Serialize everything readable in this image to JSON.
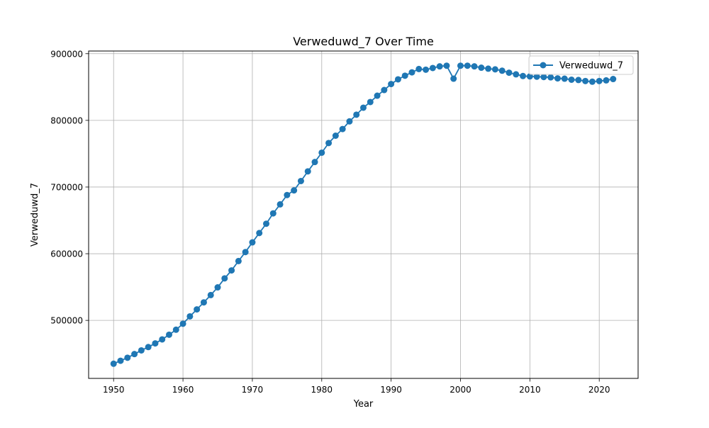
{
  "chart_data": {
    "type": "line",
    "title": "Verweduwd_7 Over Time",
    "xlabel": "Year",
    "ylabel": "Verweduwd_7",
    "xlim": [
      1946.4,
      2025.6
    ],
    "ylim": [
      413000,
      904000
    ],
    "x_ticks": [
      1950,
      1960,
      1970,
      1980,
      1990,
      2000,
      2010,
      2020
    ],
    "x_tick_labels": [
      "1950",
      "1960",
      "1970",
      "1980",
      "1990",
      "2000",
      "2010",
      "2020"
    ],
    "y_ticks": [
      500000,
      600000,
      700000,
      800000,
      900000
    ],
    "y_tick_labels": [
      "500000",
      "600000",
      "700000",
      "800000",
      "900000"
    ],
    "grid": true,
    "legend_position": "top-right",
    "series": [
      {
        "name": "Verweduwd_7",
        "color": "#1f77b4",
        "marker": "circle",
        "x": [
          1950,
          1951,
          1952,
          1953,
          1954,
          1955,
          1956,
          1957,
          1958,
          1959,
          1960,
          1961,
          1962,
          1963,
          1964,
          1965,
          1966,
          1967,
          1968,
          1969,
          1970,
          1971,
          1972,
          1973,
          1974,
          1975,
          1976,
          1977,
          1978,
          1979,
          1980,
          1981,
          1982,
          1983,
          1984,
          1985,
          1986,
          1987,
          1988,
          1989,
          1990,
          1991,
          1992,
          1993,
          1994,
          1995,
          1996,
          1997,
          1998,
          1999,
          2000,
          2001,
          2002,
          2003,
          2004,
          2005,
          2006,
          2007,
          2008,
          2009,
          2010,
          2011,
          2012,
          2013,
          2014,
          2015,
          2016,
          2017,
          2018,
          2019,
          2020,
          2021,
          2022
        ],
        "values": [
          435000,
          439500,
          444000,
          449500,
          455000,
          460000,
          465500,
          471500,
          478500,
          486000,
          495000,
          506000,
          516500,
          527000,
          538000,
          549500,
          563000,
          575000,
          589000,
          602500,
          617000,
          631000,
          645000,
          660500,
          674000,
          688000,
          695000,
          709000,
          723500,
          737500,
          751500,
          766000,
          777000,
          787000,
          798500,
          808500,
          819000,
          827500,
          837000,
          845500,
          854500,
          861500,
          867000,
          872000,
          877000,
          876000,
          878500,
          881000,
          882000,
          862500,
          882000,
          882000,
          881000,
          879000,
          877500,
          876500,
          874500,
          871500,
          869000,
          866500,
          866000,
          865500,
          865000,
          864500,
          863000,
          862500,
          861000,
          860500,
          859000,
          858000,
          859000,
          860000,
          862000
        ]
      }
    ]
  }
}
